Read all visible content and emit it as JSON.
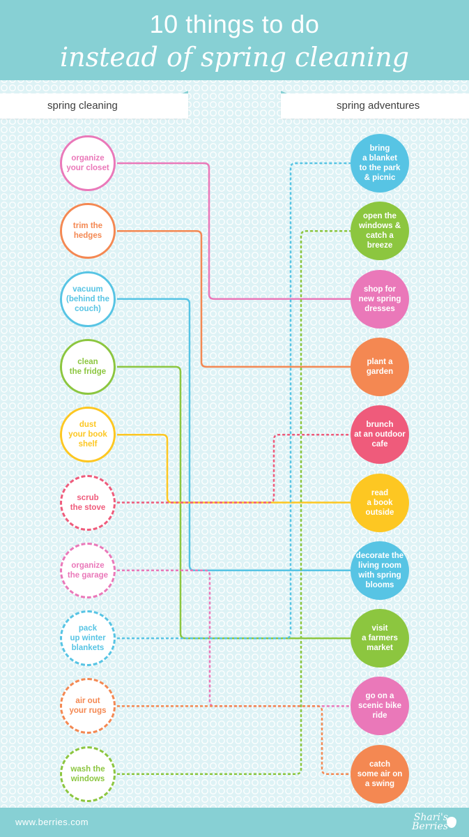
{
  "title": {
    "line1": "10 things to do",
    "line2": "instead of spring cleaning"
  },
  "columns": {
    "left": "spring cleaning",
    "right": "spring adventures"
  },
  "left_items": [
    {
      "label": "organize\nyour closet",
      "color": "#ea78b9",
      "dashed": false
    },
    {
      "label": "trim the\nhedges",
      "color": "#f48852",
      "dashed": false
    },
    {
      "label": "vacuum\n(behind the\ncouch)",
      "color": "#57c4e4",
      "dashed": false
    },
    {
      "label": "clean\nthe fridge",
      "color": "#8cc63f",
      "dashed": false
    },
    {
      "label": "dust\nyour book\nshelf",
      "color": "#fdc722",
      "dashed": false
    },
    {
      "label": "scrub\nthe stove",
      "color": "#ef5b7b",
      "dashed": true
    },
    {
      "label": "organize\nthe garage",
      "color": "#ea78b9",
      "dashed": true
    },
    {
      "label": "pack\nup winter\nblankets",
      "color": "#57c4e4",
      "dashed": true
    },
    {
      "label": "air out\nyour rugs",
      "color": "#f48852",
      "dashed": true
    },
    {
      "label": "wash the\nwindows",
      "color": "#8cc63f",
      "dashed": true
    }
  ],
  "right_items": [
    {
      "label": "bring\na blanket\nto the park\n& picnic",
      "color": "#57c4e4"
    },
    {
      "label": "open the\nwindows &\ncatch a\nbreeze",
      "color": "#8cc63f"
    },
    {
      "label": "shop for\nnew spring\ndresses",
      "color": "#ea78b9"
    },
    {
      "label": "plant a\ngarden",
      "color": "#f48852"
    },
    {
      "label": "brunch\nat an outdoor\ncafe",
      "color": "#ef5b7b"
    },
    {
      "label": "read\na book\noutside",
      "color": "#fdc722"
    },
    {
      "label": "decorate the\nliving room\nwith spring\nblooms",
      "color": "#57c4e4"
    },
    {
      "label": "visit\na farmers\nmarket",
      "color": "#8cc63f"
    },
    {
      "label": "go on a\nscenic bike\nride",
      "color": "#ea78b9"
    },
    {
      "label": "catch\nsome air on\na swing",
      "color": "#f48852"
    }
  ],
  "connections": [
    {
      "from": 0,
      "to": 2
    },
    {
      "from": 1,
      "to": 3
    },
    {
      "from": 2,
      "to": 6
    },
    {
      "from": 3,
      "to": 7
    },
    {
      "from": 4,
      "to": 5
    },
    {
      "from": 5,
      "to": 4
    },
    {
      "from": 6,
      "to": 8
    },
    {
      "from": 7,
      "to": 0
    },
    {
      "from": 8,
      "to": 9
    },
    {
      "from": 9,
      "to": 1
    }
  ],
  "footer": {
    "url": "www.berries.com",
    "logo_line1": "Shari's",
    "logo_line2": "Berries"
  }
}
